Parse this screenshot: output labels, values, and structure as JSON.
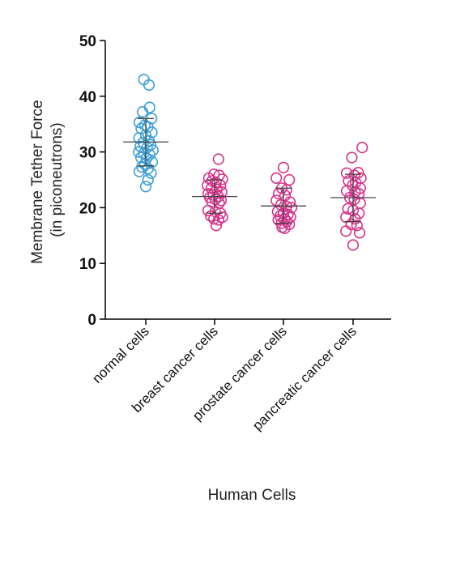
{
  "chart_data": {
    "type": "scatter",
    "subtype": "dot-plot with mean and standard deviation bars",
    "ylabel_line1": "Membrane Tether Force",
    "ylabel_line2": "(in piconeutrons)",
    "xlabel": "Human Cells",
    "ylim": [
      0,
      50
    ],
    "yticks": [
      "0",
      "10",
      "20",
      "30",
      "40",
      "50"
    ],
    "categories": [
      "normal cells",
      "breast cancer cells",
      "prostate cancer cells",
      "pancreatic cancer cells"
    ],
    "colors": [
      "#3a9fd6",
      "#d6338a",
      "#d6338a",
      "#d6338a"
    ],
    "grid": false,
    "series": [
      {
        "name": "normal cells",
        "mean": 31.8,
        "sd_low": 27.5,
        "sd_high": 36.0,
        "points": [
          [
            -0.06,
            43.0
          ],
          [
            0.1,
            42.0
          ],
          [
            0.12,
            38.0
          ],
          [
            -0.1,
            37.2
          ],
          [
            0.18,
            36.0
          ],
          [
            -0.2,
            35.3
          ],
          [
            -0.03,
            34.8
          ],
          [
            0.06,
            34.5
          ],
          [
            -0.14,
            34.2
          ],
          [
            0.19,
            33.5
          ],
          [
            0.0,
            33.0
          ],
          [
            -0.21,
            32.5
          ],
          [
            0.1,
            32.0
          ],
          [
            -0.08,
            31.7
          ],
          [
            0.15,
            31.3
          ],
          [
            -0.17,
            31.0
          ],
          [
            0.04,
            30.8
          ],
          [
            0.22,
            30.3
          ],
          [
            -0.22,
            30.0
          ],
          [
            -0.06,
            29.8
          ],
          [
            0.12,
            29.5
          ],
          [
            -0.15,
            29.0
          ],
          [
            0.02,
            28.8
          ],
          [
            0.2,
            28.2
          ],
          [
            -0.03,
            27.8
          ],
          [
            -0.12,
            27.3
          ],
          [
            0.07,
            27.0
          ],
          [
            -0.2,
            26.5
          ],
          [
            0.16,
            26.2
          ],
          [
            0.07,
            25.0
          ],
          [
            0.0,
            23.8
          ]
        ]
      },
      {
        "name": "breast cancer cells",
        "mean": 22.0,
        "sd_low": 19.0,
        "sd_high": 25.0,
        "points": [
          [
            0.12,
            28.7
          ],
          [
            -0.02,
            26.0
          ],
          [
            0.14,
            25.8
          ],
          [
            -0.18,
            25.3
          ],
          [
            0.24,
            25.1
          ],
          [
            -0.08,
            24.8
          ],
          [
            0.04,
            24.5
          ],
          [
            0.18,
            24.0
          ],
          [
            -0.22,
            24.0
          ],
          [
            -0.1,
            23.5
          ],
          [
            0.07,
            23.3
          ],
          [
            0.22,
            22.8
          ],
          [
            -0.2,
            22.5
          ],
          [
            -0.04,
            22.3
          ],
          [
            0.12,
            22.0
          ],
          [
            -0.15,
            21.8
          ],
          [
            0.02,
            21.5
          ],
          [
            0.2,
            21.3
          ],
          [
            -0.08,
            21.0
          ],
          [
            0.14,
            20.8
          ],
          [
            -0.2,
            19.5
          ],
          [
            0.02,
            19.3
          ],
          [
            0.18,
            19.0
          ],
          [
            -0.12,
            18.5
          ],
          [
            0.24,
            18.3
          ],
          [
            -0.02,
            18.0
          ],
          [
            0.12,
            17.8
          ],
          [
            0.05,
            16.8
          ]
        ]
      },
      {
        "name": "prostate cancer cells",
        "mean": 20.3,
        "sd_low": 17.2,
        "sd_high": 23.5,
        "points": [
          [
            0.0,
            27.2
          ],
          [
            -0.22,
            25.3
          ],
          [
            0.18,
            25.0
          ],
          [
            -0.05,
            23.5
          ],
          [
            0.1,
            23.2
          ],
          [
            -0.15,
            22.5
          ],
          [
            0.05,
            22.2
          ],
          [
            -0.22,
            21.3
          ],
          [
            0.2,
            21.0
          ],
          [
            -0.08,
            20.5
          ],
          [
            0.1,
            20.2
          ],
          [
            0.25,
            20.0
          ],
          [
            -0.18,
            19.3
          ],
          [
            0.0,
            19.0
          ],
          [
            0.14,
            18.8
          ],
          [
            -0.1,
            18.5
          ],
          [
            0.22,
            18.3
          ],
          [
            0.04,
            18.0
          ],
          [
            -0.16,
            17.8
          ],
          [
            0.1,
            17.5
          ],
          [
            -0.06,
            17.2
          ],
          [
            0.18,
            17.0
          ],
          [
            -0.04,
            16.5
          ],
          [
            0.04,
            16.3
          ]
        ]
      },
      {
        "name": "pancreatic cancer cells",
        "mean": 21.8,
        "sd_low": 17.5,
        "sd_high": 26.0,
        "points": [
          [
            0.28,
            30.8
          ],
          [
            -0.04,
            29.0
          ],
          [
            0.16,
            26.3
          ],
          [
            -0.2,
            26.2
          ],
          [
            0.04,
            25.8
          ],
          [
            0.24,
            25.3
          ],
          [
            -0.14,
            24.8
          ],
          [
            0.08,
            24.5
          ],
          [
            -0.02,
            24.0
          ],
          [
            0.22,
            23.5
          ],
          [
            -0.2,
            23.0
          ],
          [
            0.06,
            22.8
          ],
          [
            0.18,
            22.5
          ],
          [
            -0.1,
            21.8
          ],
          [
            0.04,
            21.5
          ],
          [
            0.22,
            20.8
          ],
          [
            -0.16,
            19.8
          ],
          [
            0.0,
            19.5
          ],
          [
            0.18,
            19.0
          ],
          [
            -0.22,
            18.3
          ],
          [
            0.06,
            18.0
          ],
          [
            -0.06,
            17.0
          ],
          [
            0.12,
            16.8
          ],
          [
            -0.22,
            15.8
          ],
          [
            0.2,
            15.5
          ],
          [
            0.0,
            13.3
          ]
        ]
      }
    ]
  }
}
